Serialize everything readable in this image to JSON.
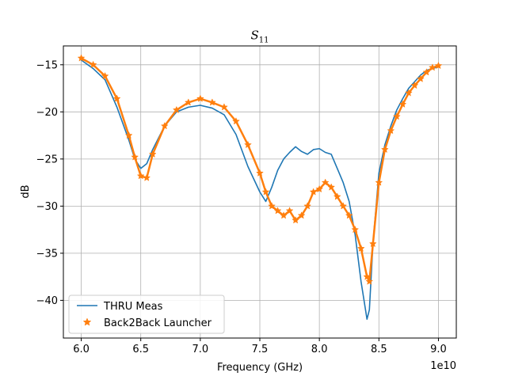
{
  "chart_data": {
    "type": "line",
    "title": "S11",
    "title_main": "S",
    "title_sub": "11",
    "xlabel": "Frequency (GHz)",
    "ylabel": "dB",
    "x_offset_text": "1e10",
    "xlim": [
      58500000000,
      91500000000
    ],
    "ylim": [
      -44,
      -13
    ],
    "xticks": [
      60000000000,
      65000000000,
      70000000000,
      75000000000,
      80000000000,
      85000000000,
      90000000000
    ],
    "xtick_labels": [
      "6.0",
      "6.5",
      "7.0",
      "7.5",
      "8.0",
      "8.5",
      "9.0"
    ],
    "yticks": [
      -40,
      -35,
      -30,
      -25,
      -20,
      -15
    ],
    "ytick_labels": [
      "−40",
      "−35",
      "−30",
      "−25",
      "−20",
      "−15"
    ],
    "grid": true,
    "legend_position": "lower-left",
    "series": [
      {
        "name": "THRU Meas",
        "color": "#1f77b4",
        "marker": "none",
        "x": [
          60000000000,
          61000000000,
          62000000000,
          63000000000,
          64000000000,
          64500000000,
          65000000000,
          65500000000,
          66000000000,
          67000000000,
          68000000000,
          69000000000,
          70000000000,
          71000000000,
          72000000000,
          73000000000,
          74000000000,
          75000000000,
          75500000000,
          76000000000,
          76500000000,
          77000000000,
          77500000000,
          78000000000,
          78500000000,
          79000000000,
          79500000000,
          80000000000,
          80500000000,
          81000000000,
          81500000000,
          82000000000,
          82500000000,
          83000000000,
          83500000000,
          84000000000,
          84200000000,
          84500000000,
          85000000000,
          85500000000,
          86000000000,
          86500000000,
          87000000000,
          87500000000,
          88000000000,
          88500000000,
          89000000000,
          89500000000,
          90000000000
        ],
        "y": [
          -14.5,
          -15.4,
          -16.6,
          -19.5,
          -23.0,
          -25.0,
          -26.0,
          -25.5,
          -24.0,
          -21.5,
          -20.0,
          -19.5,
          -19.3,
          -19.6,
          -20.3,
          -22.4,
          -25.8,
          -28.5,
          -29.5,
          -28.0,
          -26.2,
          -25.0,
          -24.3,
          -23.7,
          -24.2,
          -24.5,
          -24.0,
          -23.9,
          -24.3,
          -24.5,
          -26.0,
          -27.5,
          -29.5,
          -33.0,
          -38.0,
          -42.0,
          -41.0,
          -34.0,
          -26.5,
          -23.5,
          -21.5,
          -19.8,
          -18.6,
          -17.5,
          -16.8,
          -16.1,
          -15.6,
          -15.4,
          -15.2
        ]
      },
      {
        "name": "Back2Back Launcher",
        "color": "#ff7f0e",
        "marker": "star",
        "x": [
          60000000000,
          61000000000,
          62000000000,
          63000000000,
          64000000000,
          64500000000,
          65000000000,
          65500000000,
          66000000000,
          67000000000,
          68000000000,
          69000000000,
          70000000000,
          71000000000,
          72000000000,
          73000000000,
          74000000000,
          75000000000,
          75500000000,
          76000000000,
          76500000000,
          77000000000,
          77500000000,
          78000000000,
          78500000000,
          79000000000,
          79500000000,
          80000000000,
          80500000000,
          81000000000,
          81500000000,
          82000000000,
          82500000000,
          83000000000,
          83500000000,
          84000000000,
          84200000000,
          84500000000,
          85000000000,
          85500000000,
          86000000000,
          86500000000,
          87000000000,
          87500000000,
          88000000000,
          88500000000,
          89000000000,
          89500000000,
          90000000000
        ],
        "y": [
          -14.3,
          -15.0,
          -16.2,
          -18.6,
          -22.5,
          -24.8,
          -26.8,
          -27.0,
          -24.5,
          -21.5,
          -19.8,
          -19.0,
          -18.6,
          -19.0,
          -19.5,
          -21.0,
          -23.5,
          -26.5,
          -28.5,
          -30.0,
          -30.5,
          -31.0,
          -30.5,
          -31.5,
          -31.0,
          -30.0,
          -28.5,
          -28.2,
          -27.5,
          -28.0,
          -29.0,
          -30.0,
          -31.0,
          -32.5,
          -34.5,
          -37.5,
          -38.0,
          -34.0,
          -27.5,
          -24.0,
          -22.0,
          -20.5,
          -19.2,
          -18.0,
          -17.2,
          -16.5,
          -15.8,
          -15.3,
          -15.1
        ]
      }
    ]
  }
}
